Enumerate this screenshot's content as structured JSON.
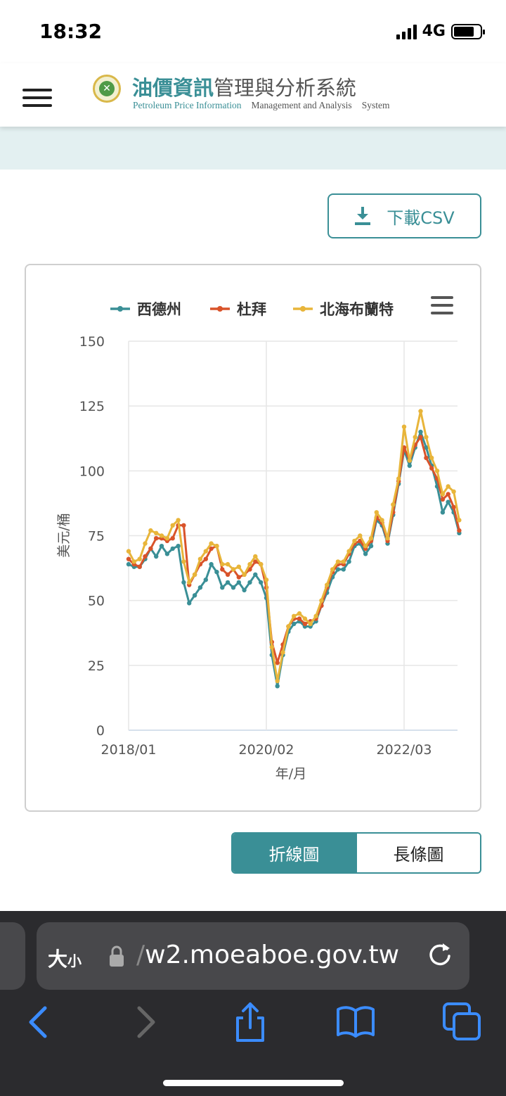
{
  "status_bar": {
    "time": "18:32",
    "network": "4G"
  },
  "header": {
    "brand_strong": "油價資訊",
    "brand_light": "管理與分析系統",
    "brand_en_1": "Petroleum Price Information",
    "brand_en_2": "Management and Analysis",
    "brand_en_3": "System"
  },
  "download": {
    "label": "下載CSV"
  },
  "chart_data": {
    "type": "line",
    "title": "",
    "xlabel": "年/月",
    "ylabel": "美元/桶",
    "ylim": [
      0,
      150
    ],
    "y_ticks": [
      "0",
      "25",
      "50",
      "75",
      "100",
      "125",
      "150"
    ],
    "x_tick_labels": [
      "2018/01",
      "2020/02",
      "2022/03"
    ],
    "x_tick_index": [
      0,
      25,
      50
    ],
    "grid": true,
    "legend_position": "top",
    "series": [
      {
        "name": "西德州",
        "color": "#3a8f96",
        "values": [
          64,
          63,
          63,
          66,
          70,
          67,
          71,
          68,
          70,
          71,
          57,
          49,
          52,
          55,
          58,
          64,
          61,
          55,
          57,
          55,
          57,
          54,
          57,
          60,
          57,
          51,
          29,
          17,
          29,
          38,
          41,
          42,
          40,
          40,
          42,
          48,
          53,
          59,
          62,
          62,
          65,
          71,
          72,
          68,
          71,
          81,
          79,
          72,
          83,
          95,
          108,
          102,
          109,
          115,
          109,
          102,
          94,
          84,
          88,
          84,
          76
        ]
      },
      {
        "name": "杜拜",
        "color": "#d9532a",
        "values": [
          66,
          64,
          63,
          67,
          70,
          74,
          74,
          73,
          74,
          79,
          79,
          56,
          60,
          64,
          66,
          70,
          71,
          62,
          60,
          62,
          59,
          60,
          62,
          65,
          64,
          55,
          34,
          26,
          33,
          40,
          43,
          43,
          41,
          42,
          43,
          48,
          55,
          61,
          64,
          64,
          68,
          72,
          73,
          70,
          73,
          82,
          80,
          73,
          84,
          96,
          109,
          104,
          110,
          113,
          105,
          101,
          97,
          89,
          91,
          86,
          77
        ]
      },
      {
        "name": "北海布蘭特",
        "color": "#e8b53a",
        "values": [
          69,
          65,
          66,
          72,
          77,
          76,
          75,
          74,
          79,
          81,
          65,
          57,
          60,
          66,
          69,
          72,
          71,
          64,
          64,
          62,
          63,
          60,
          64,
          67,
          64,
          58,
          32,
          19,
          30,
          40,
          44,
          45,
          43,
          41,
          44,
          50,
          56,
          62,
          65,
          65,
          69,
          73,
          75,
          71,
          74,
          84,
          81,
          74,
          87,
          97,
          117,
          104,
          113,
          123,
          113,
          105,
          100,
          91,
          94,
          92,
          81
        ]
      }
    ]
  },
  "toggle": {
    "line_label": "折線圖",
    "bar_label": "長條圖"
  },
  "browser": {
    "size_label_big": "大",
    "size_label_small": "小",
    "url_cut": "/",
    "url": "w2.moeaboe.gov.tw"
  },
  "icons": [
    "hamburger-icon",
    "download-icon",
    "chart-menu-icon",
    "lock-icon",
    "reload-icon",
    "back-icon",
    "forward-icon",
    "share-icon",
    "bookmarks-icon",
    "tabs-icon"
  ]
}
